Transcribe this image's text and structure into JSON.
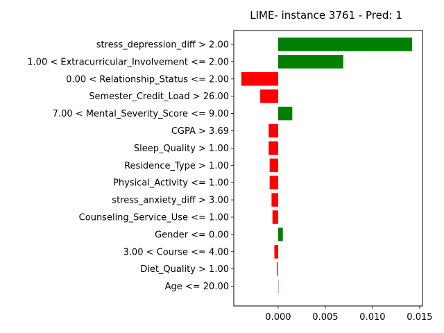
{
  "chart_data": {
    "type": "bar",
    "orientation": "horizontal",
    "title": "LIME- instance 3761 - Pred: 1",
    "xlabel": "",
    "ylabel": "",
    "xlim": [
      -0.0047,
      0.0153
    ],
    "xticks": [
      {
        "value": 0.0,
        "label": "0.000"
      },
      {
        "value": 0.005,
        "label": "0.005"
      },
      {
        "value": 0.01,
        "label": "0.010"
      },
      {
        "value": 0.015,
        "label": "0.015"
      }
    ],
    "grid": false,
    "positive_color": "#008000",
    "negative_color": "#ff0000",
    "categories": [
      "stress_depression_diff > 2.00",
      "1.00 < Extracurricular_Involvement <= 2.00",
      "0.00 < Relationship_Status <= 2.00",
      "Semester_Credit_Load > 26.00",
      "7.00 < Mental_Severity_Score <= 9.00",
      "CGPA > 3.69",
      "Sleep_Quality > 1.00",
      "Residence_Type > 1.00",
      "Physical_Activity <= 1.00",
      "stress_anxiety_diff > 3.00",
      "Counseling_Service_Use <= 1.00",
      "Gender <= 0.00",
      "3.00 < Course <= 4.00",
      "Diet_Quality > 1.00",
      "Age <= 20.00"
    ],
    "values": [
      0.0142,
      0.0069,
      -0.0039,
      -0.0019,
      0.0015,
      -0.001,
      -0.001,
      -0.0009,
      -0.0009,
      -0.0007,
      -0.0006,
      0.0005,
      -0.0004,
      -0.0001,
      0.0
    ]
  }
}
